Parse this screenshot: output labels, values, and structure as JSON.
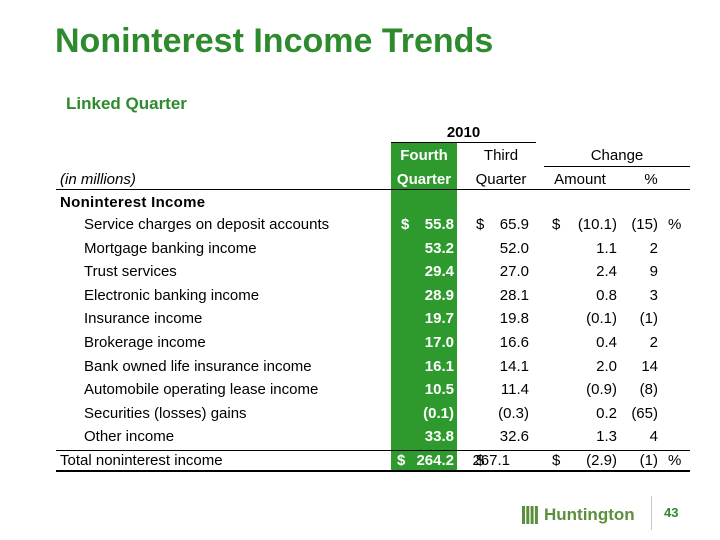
{
  "title": "Noninterest Income Trends",
  "subtitle": "Linked Quarter",
  "table": {
    "year": "2010",
    "col_fourth_1": "Fourth",
    "col_fourth_2": "Quarter",
    "col_third_1": "Third",
    "col_third_2": "Quarter",
    "col_change": "Change",
    "col_amount": "Amount",
    "col_pct": "%",
    "units": "(in millions)",
    "section": "Noninterest Income",
    "rows": [
      {
        "label": "Service charges on deposit accounts",
        "q4_sign": "$",
        "q4": "55.8",
        "q3_sign": "$",
        "q3": "65.9",
        "amt_sign": "$",
        "amt": "(10.1)",
        "pct": "(15)",
        "pct_sign": "%"
      },
      {
        "label": "Mortgage banking income",
        "q4": "53.2",
        "q3": "52.0",
        "amt": "1.1",
        "pct": "2"
      },
      {
        "label": "Trust services",
        "q4": "29.4",
        "q3": "27.0",
        "amt": "2.4",
        "pct": "9"
      },
      {
        "label": "Electronic banking income",
        "q4": "28.9",
        "q3": "28.1",
        "amt": "0.8",
        "pct": "3"
      },
      {
        "label": "Insurance income",
        "q4": "19.7",
        "q3": "19.8",
        "amt": "(0.1)",
        "pct": "(1)"
      },
      {
        "label": "Brokerage income",
        "q4": "17.0",
        "q3": "16.6",
        "amt": "0.4",
        "pct": "2"
      },
      {
        "label": "Bank owned life insurance income",
        "q4": "16.1",
        "q3": "14.1",
        "amt": "2.0",
        "pct": "14"
      },
      {
        "label": "Automobile operating lease income",
        "q4": "10.5",
        "q3": "11.4",
        "amt": "(0.9)",
        "pct": "(8)"
      },
      {
        "label": "Securities (losses) gains",
        "q4": "(0.1)",
        "q3": "(0.3)",
        "amt": "0.2",
        "pct": "(65)"
      },
      {
        "label": "Other income",
        "q4": "33.8",
        "q3": "32.6",
        "amt": "1.3",
        "pct": "4"
      }
    ],
    "total": {
      "label": "Total noninterest income",
      "q4_sign": "$",
      "q4": "264.2",
      "q3_sign": "$",
      "q3": "267.1",
      "amt_sign": "$",
      "amt": "(2.9)",
      "pct": "(1)",
      "pct_sign": "%"
    }
  },
  "footer": {
    "logo_text": "Huntington",
    "page_number": "43"
  },
  "colors": {
    "brand_green": "#2d8a2d",
    "highlight_green": "#2e9a2e"
  }
}
